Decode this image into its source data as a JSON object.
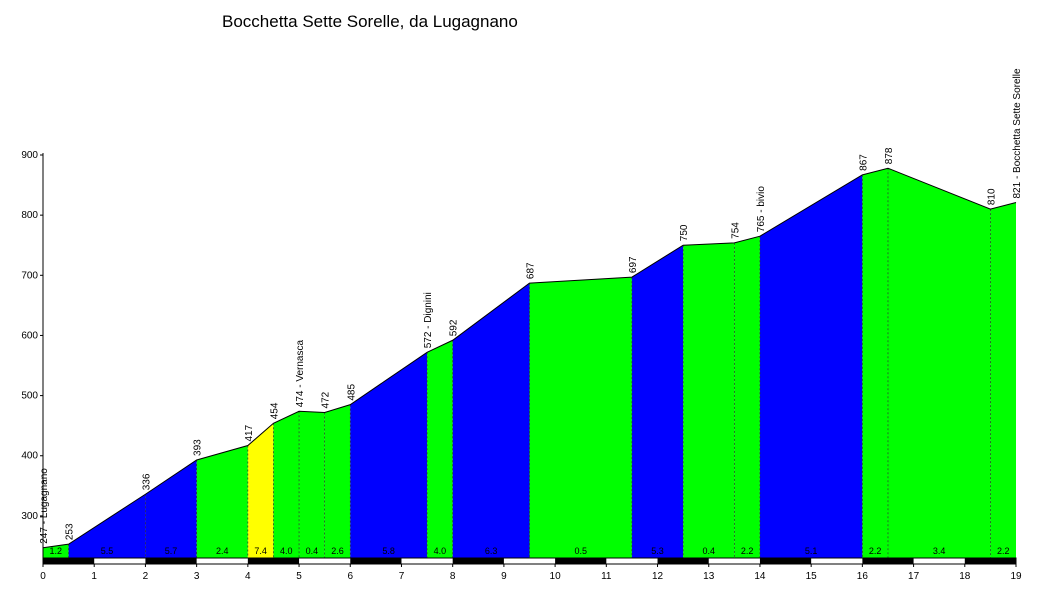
{
  "chart_data": {
    "type": "area",
    "title": "Bocchetta Sette Sorelle, da Lugagnano",
    "xlim": [
      0,
      19
    ],
    "ylim": [
      230,
      900
    ],
    "x_ticks": [
      "0",
      "1",
      "2",
      "3",
      "4",
      "5",
      "6",
      "7",
      "8",
      "9",
      "10",
      "11",
      "12",
      "13",
      "14",
      "15",
      "16",
      "17",
      "18",
      "19"
    ],
    "y_ticks": [
      "300",
      "400",
      "500",
      "600",
      "700",
      "800",
      "900"
    ],
    "points": [
      {
        "x": 0,
        "y": 247,
        "label": "247 - Lugagnano"
      },
      {
        "x": 0.5,
        "y": 253,
        "label": "253"
      },
      {
        "x": 2,
        "y": 336,
        "label": "336"
      },
      {
        "x": 3,
        "y": 393,
        "label": "393"
      },
      {
        "x": 4,
        "y": 417,
        "label": "417"
      },
      {
        "x": 4.5,
        "y": 454,
        "label": "454"
      },
      {
        "x": 5,
        "y": 474,
        "label": "474 - Vernasca"
      },
      {
        "x": 5.5,
        "y": 472,
        "label": "472"
      },
      {
        "x": 6,
        "y": 485,
        "label": "485"
      },
      {
        "x": 7.5,
        "y": 572,
        "label": "572 - Dignini"
      },
      {
        "x": 8,
        "y": 592,
        "label": "592"
      },
      {
        "x": 9.5,
        "y": 687,
        "label": "687"
      },
      {
        "x": 11.5,
        "y": 697,
        "label": "697"
      },
      {
        "x": 12.5,
        "y": 750,
        "label": "750"
      },
      {
        "x": 13.5,
        "y": 754,
        "label": "754"
      },
      {
        "x": 14,
        "y": 765,
        "label": "765 - bivio"
      },
      {
        "x": 16,
        "y": 867,
        "label": "867"
      },
      {
        "x": 16.5,
        "y": 878,
        "label": "878"
      },
      {
        "x": 18.5,
        "y": 810,
        "label": "810"
      },
      {
        "x": 19,
        "y": 821,
        "label": "821 - Bocchetta Sette Sorelle"
      }
    ],
    "segments": [
      {
        "x0": 0,
        "x1": 0.5,
        "grade": "1.2",
        "color": "#00ff00"
      },
      {
        "x0": 0.5,
        "x1": 2,
        "grade": "5.5",
        "color": "#0000ff"
      },
      {
        "x0": 2,
        "x1": 3,
        "grade": "5.7",
        "color": "#0000ff"
      },
      {
        "x0": 3,
        "x1": 4,
        "grade": "2.4",
        "color": "#00ff00"
      },
      {
        "x0": 4,
        "x1": 4.5,
        "grade": "7.4",
        "color": "#ffff00"
      },
      {
        "x0": 4.5,
        "x1": 5,
        "grade": "4.0",
        "color": "#00ff00"
      },
      {
        "x0": 5,
        "x1": 5.5,
        "grade": "0.4",
        "color": "#00ff00"
      },
      {
        "x0": 5.5,
        "x1": 6,
        "grade": "2.6",
        "color": "#00ff00"
      },
      {
        "x0": 6,
        "x1": 7.5,
        "grade": "5.8",
        "color": "#0000ff"
      },
      {
        "x0": 7.5,
        "x1": 8,
        "grade": "4.0",
        "color": "#00ff00"
      },
      {
        "x0": 8,
        "x1": 9.5,
        "grade": "6.3",
        "color": "#0000ff"
      },
      {
        "x0": 9.5,
        "x1": 11.5,
        "grade": "0.5",
        "color": "#00ff00"
      },
      {
        "x0": 11.5,
        "x1": 12.5,
        "grade": "5.3",
        "color": "#0000ff"
      },
      {
        "x0": 12.5,
        "x1": 13.5,
        "grade": "0.4",
        "color": "#00ff00"
      },
      {
        "x0": 13.5,
        "x1": 14,
        "grade": "2.2",
        "color": "#00ff00"
      },
      {
        "x0": 14,
        "x1": 16,
        "grade": "5.1",
        "color": "#0000ff"
      },
      {
        "x0": 16,
        "x1": 16.5,
        "grade": "2.2",
        "color": "#00ff00"
      },
      {
        "x0": 16.5,
        "x1": 18.5,
        "grade": "3.4",
        "color": "#00ff00"
      },
      {
        "x0": 18.5,
        "x1": 19,
        "grade": "2.2",
        "color": "#00ff00"
      }
    ],
    "grid": false,
    "legend": "none"
  }
}
